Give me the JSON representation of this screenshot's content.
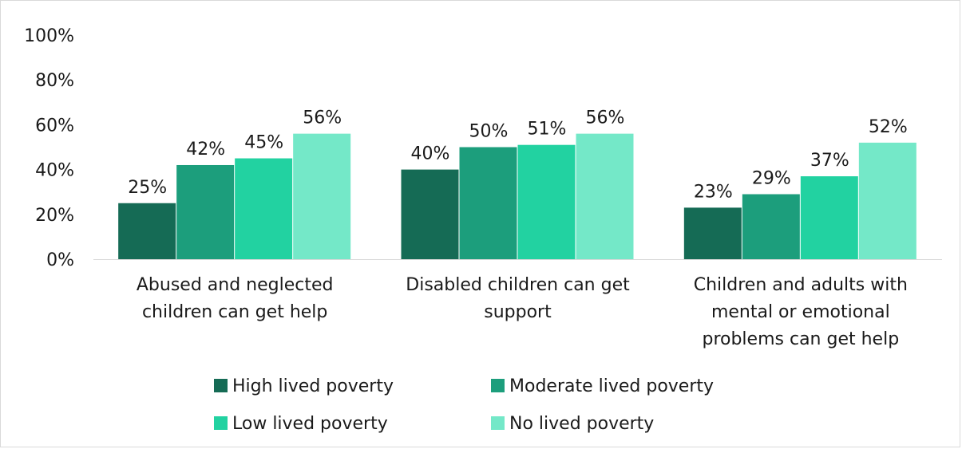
{
  "chart_data": {
    "type": "bar",
    "categories": [
      [
        "Abused and neglected",
        "children can get help"
      ],
      [
        "Disabled children can get",
        "support"
      ],
      [
        "Children and adults with",
        "mental or emotional",
        "problems can get help"
      ]
    ],
    "series": [
      {
        "name": "High lived poverty",
        "color": "#156b55",
        "values": [
          25,
          40,
          23
        ]
      },
      {
        "name": "Moderate lived poverty",
        "color": "#1c9e7c",
        "values": [
          42,
          50,
          29
        ]
      },
      {
        "name": "Low lived poverty",
        "color": "#22d2a1",
        "values": [
          45,
          51,
          37
        ]
      },
      {
        "name": "No lived poverty",
        "color": "#74e8c8",
        "values": [
          56,
          56,
          52
        ]
      }
    ],
    "data_labels": [
      [
        "25%",
        "40%",
        "23%"
      ],
      [
        "42%",
        "50%",
        "29%"
      ],
      [
        "45%",
        "51%",
        "37%"
      ],
      [
        "56%",
        "56%",
        "52%"
      ]
    ],
    "y_ticks": [
      "0%",
      "20%",
      "40%",
      "60%",
      "80%",
      "100%"
    ],
    "ylim": [
      0,
      100
    ],
    "grid": false,
    "legend_position": "bottom"
  }
}
